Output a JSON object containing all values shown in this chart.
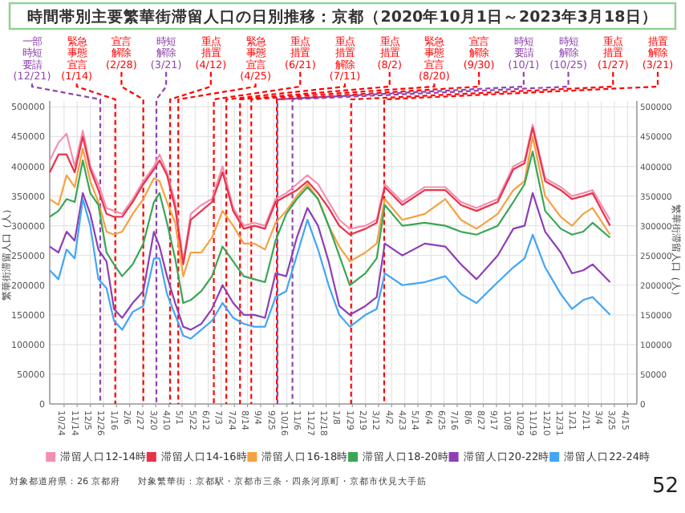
{
  "chart_data": {
    "type": "line",
    "title": "時間帯別主要繁華街滞留人口の日別推移：京都（2020年10月1日～2023年3月18日）",
    "ylabel": "繁華街滞留人口（人）",
    "y2label": "繁華街滞留人口（人）",
    "x": [
      "2020-10-01",
      "2020-10-15",
      "2020-10-28",
      "2020-11-10",
      "2020-11-23",
      "2020-12-05",
      "2020-12-18",
      "2020-12-31",
      "2021-01-12",
      "2021-01-25",
      "2021-02-11",
      "2021-02-28",
      "2021-03-17",
      "2021-03-26",
      "2021-04-07",
      "2021-04-20",
      "2021-05-03",
      "2021-05-15",
      "2021-06-01",
      "2021-06-18",
      "2021-07-05",
      "2021-07-22",
      "2021-08-08",
      "2021-08-25",
      "2021-09-11",
      "2021-09-28",
      "2021-10-15",
      "2021-11-01",
      "2021-11-18",
      "2021-12-05",
      "2021-12-22",
      "2022-01-08",
      "2022-01-25",
      "2022-02-19",
      "2022-03-09",
      "2022-03-22",
      "2022-04-19",
      "2022-05-25",
      "2022-06-27",
      "2022-07-22",
      "2022-08-16",
      "2022-09-19",
      "2022-10-14",
      "2022-11-01",
      "2022-11-14",
      "2022-12-04",
      "2022-12-29",
      "2023-01-16",
      "2023-02-03",
      "2023-02-18",
      "2023-03-18"
    ],
    "series": [
      {
        "name": "滞留人口12-14時",
        "color": "#f48fb1",
        "values": [
          410000,
          440000,
          455000,
          400000,
          460000,
          400000,
          370000,
          330000,
          325000,
          320000,
          345000,
          375000,
          400000,
          420000,
          390000,
          340000,
          240000,
          320000,
          335000,
          345000,
          400000,
          330000,
          300000,
          305000,
          300000,
          345000,
          355000,
          370000,
          385000,
          370000,
          340000,
          310000,
          295000,
          300000,
          310000,
          370000,
          340000,
          365000,
          365000,
          340000,
          330000,
          345000,
          400000,
          410000,
          470000,
          380000,
          365000,
          350000,
          355000,
          360000,
          310000
        ]
      },
      {
        "name": "滞留人口14-16時",
        "color": "#e8334a",
        "values": [
          390000,
          420000,
          420000,
          390000,
          450000,
          395000,
          360000,
          320000,
          315000,
          315000,
          340000,
          370000,
          395000,
          410000,
          385000,
          330000,
          235000,
          310000,
          325000,
          340000,
          390000,
          325000,
          295000,
          300000,
          295000,
          340000,
          350000,
          360000,
          375000,
          355000,
          330000,
          300000,
          285000,
          295000,
          305000,
          365000,
          335000,
          360000,
          360000,
          335000,
          325000,
          340000,
          395000,
          405000,
          465000,
          375000,
          360000,
          345000,
          350000,
          355000,
          300000
        ]
      },
      {
        "name": "滞留人口16-18時",
        "color": "#f5a142",
        "values": [
          345000,
          335000,
          385000,
          365000,
          430000,
          375000,
          340000,
          290000,
          285000,
          290000,
          320000,
          345000,
          380000,
          375000,
          340000,
          305000,
          215000,
          255000,
          255000,
          280000,
          325000,
          300000,
          270000,
          270000,
          260000,
          305000,
          325000,
          350000,
          370000,
          345000,
          300000,
          265000,
          240000,
          255000,
          270000,
          345000,
          310000,
          320000,
          345000,
          310000,
          295000,
          320000,
          360000,
          375000,
          450000,
          350000,
          315000,
          300000,
          320000,
          330000,
          285000
        ]
      },
      {
        "name": "滞留人口18-20時",
        "color": "#3aa655",
        "values": [
          315000,
          325000,
          345000,
          340000,
          410000,
          355000,
          335000,
          255000,
          235000,
          215000,
          235000,
          270000,
          340000,
          355000,
          305000,
          245000,
          170000,
          175000,
          190000,
          215000,
          265000,
          240000,
          215000,
          210000,
          205000,
          275000,
          320000,
          345000,
          365000,
          345000,
          300000,
          250000,
          200000,
          220000,
          245000,
          335000,
          300000,
          305000,
          300000,
          290000,
          285000,
          300000,
          340000,
          370000,
          425000,
          325000,
          295000,
          285000,
          290000,
          305000,
          280000
        ]
      },
      {
        "name": "滞留人口20-22時",
        "color": "#8e3fb5",
        "values": [
          265000,
          255000,
          290000,
          275000,
          355000,
          320000,
          260000,
          240000,
          160000,
          145000,
          170000,
          190000,
          290000,
          265000,
          215000,
          170000,
          130000,
          125000,
          135000,
          160000,
          200000,
          170000,
          150000,
          150000,
          145000,
          220000,
          215000,
          280000,
          330000,
          300000,
          240000,
          165000,
          150000,
          165000,
          180000,
          270000,
          250000,
          270000,
          265000,
          235000,
          210000,
          250000,
          295000,
          300000,
          355000,
          290000,
          255000,
          220000,
          225000,
          235000,
          205000
        ]
      },
      {
        "name": "滞留人口22-24時",
        "color": "#42a5f5",
        "values": [
          225000,
          210000,
          260000,
          245000,
          345000,
          300000,
          210000,
          195000,
          140000,
          125000,
          155000,
          165000,
          245000,
          245000,
          185000,
          150000,
          115000,
          110000,
          125000,
          140000,
          170000,
          145000,
          135000,
          130000,
          130000,
          180000,
          190000,
          250000,
          310000,
          260000,
          200000,
          150000,
          130000,
          150000,
          160000,
          220000,
          200000,
          205000,
          215000,
          185000,
          170000,
          205000,
          230000,
          245000,
          285000,
          230000,
          185000,
          160000,
          175000,
          180000,
          150000
        ]
      }
    ],
    "xlim": [
      "2020-10-01",
      "2023-04-30"
    ],
    "xticks": [
      {
        "value": "2020-10-24",
        "label": "10/24"
      },
      {
        "value": "2020-11-14",
        "label": "11/14"
      },
      {
        "value": "2020-12-05",
        "label": "12/5"
      },
      {
        "value": "2020-12-26",
        "label": "12/26"
      },
      {
        "value": "2021-01-16",
        "label": "1/16"
      },
      {
        "value": "2021-02-06",
        "label": "2/6"
      },
      {
        "value": "2021-02-27",
        "label": "2/27"
      },
      {
        "value": "2021-03-20",
        "label": "3/20"
      },
      {
        "value": "2021-04-10",
        "label": "4/10"
      },
      {
        "value": "2021-05-01",
        "label": "5/1"
      },
      {
        "value": "2021-05-22",
        "label": "5/22"
      },
      {
        "value": "2021-06-12",
        "label": "6/12"
      },
      {
        "value": "2021-07-03",
        "label": "7/3"
      },
      {
        "value": "2021-07-24",
        "label": "7/24"
      },
      {
        "value": "2021-08-14",
        "label": "8/14"
      },
      {
        "value": "2021-09-04",
        "label": "9/4"
      },
      {
        "value": "2021-09-25",
        "label": "9/25"
      },
      {
        "value": "2021-10-16",
        "label": "10/16"
      },
      {
        "value": "2021-11-06",
        "label": "11/6"
      },
      {
        "value": "2021-11-27",
        "label": "11/27"
      },
      {
        "value": "2021-12-18",
        "label": "12/18"
      },
      {
        "value": "2022-01-08",
        "label": "1/8"
      },
      {
        "value": "2022-01-29",
        "label": "1/29"
      },
      {
        "value": "2022-02-19",
        "label": "2/19"
      },
      {
        "value": "2022-03-12",
        "label": "3/12"
      },
      {
        "value": "2022-04-02",
        "label": "4/2"
      },
      {
        "value": "2022-04-23",
        "label": "4/23"
      },
      {
        "value": "2022-05-14",
        "label": "5/14"
      },
      {
        "value": "2022-06-04",
        "label": "6/4"
      },
      {
        "value": "2022-06-25",
        "label": "6/25"
      },
      {
        "value": "2022-07-16",
        "label": "7/16"
      },
      {
        "value": "2022-08-06",
        "label": "8/6"
      },
      {
        "value": "2022-08-27",
        "label": "8/27"
      },
      {
        "value": "2022-09-17",
        "label": "9/17"
      },
      {
        "value": "2022-10-08",
        "label": "10/8"
      },
      {
        "value": "2022-10-29",
        "label": "10/29"
      },
      {
        "value": "2022-11-19",
        "label": "11/19"
      },
      {
        "value": "2022-12-10",
        "label": "12/10"
      },
      {
        "value": "2022-12-31",
        "label": "12/31"
      },
      {
        "value": "2023-01-21",
        "label": "1/21"
      },
      {
        "value": "2023-02-11",
        "label": "2/11"
      },
      {
        "value": "2023-03-04",
        "label": "3/4"
      },
      {
        "value": "2023-03-25",
        "label": "3/25"
      },
      {
        "value": "2023-04-15",
        "label": "4/15"
      }
    ],
    "ylim": [
      0,
      510000
    ],
    "yticks": [
      0,
      50000,
      100000,
      150000,
      200000,
      250000,
      300000,
      350000,
      400000,
      450000,
      500000
    ],
    "y2lim": [
      0,
      510000
    ],
    "y2ticks": [
      0,
      50000,
      100000,
      150000,
      200000,
      250000,
      300000,
      350000,
      400000,
      450000,
      500000
    ],
    "ref_lines": [
      {
        "axis": "x",
        "value": "2020-12-21",
        "label": "一部時短要請(12/21)",
        "color": "#8e44ad",
        "line_style": "dashed"
      },
      {
        "axis": "x",
        "value": "2021-01-14",
        "label": "緊急事態宣言(1/14)",
        "color": "#ff0000",
        "line_style": "dashed"
      },
      {
        "axis": "x",
        "value": "2021-02-28",
        "label": "宣言解除(2/28)",
        "color": "#ff0000",
        "line_style": "dashed"
      },
      {
        "axis": "x",
        "value": "2021-03-21",
        "label": "時短解除(3/21)",
        "color": "#8e44ad",
        "line_style": "dashed"
      },
      {
        "axis": "x",
        "value": "2021-04-12",
        "label": "重点措置(4/12)",
        "color": "#ff0000",
        "line_style": "dashed"
      },
      {
        "axis": "x",
        "value": "2021-04-25",
        "label": "緊急事態宣言(4/25)",
        "color": "#ff0000",
        "line_style": "dashed"
      },
      {
        "axis": "x",
        "value": "2021-06-21",
        "label": "重点措置(6/21)",
        "color": "#ff0000",
        "line_style": "dashed"
      },
      {
        "axis": "x",
        "value": "2021-07-11",
        "label": "重点措置解除(7/11)",
        "color": "#ff0000",
        "line_style": "dashed"
      },
      {
        "axis": "x",
        "value": "2021-08-02",
        "label": "重点措置(8/2)",
        "color": "#ff0000",
        "line_style": "dashed"
      },
      {
        "axis": "x",
        "value": "2021-08-20",
        "label": "緊急事態宣言(8/20)",
        "color": "#ff0000",
        "line_style": "dashed"
      },
      {
        "axis": "x",
        "value": "2021-09-30",
        "label": "宣言解除(9/30)",
        "color": "#ff0000",
        "line_style": "dashed"
      },
      {
        "axis": "x",
        "value": "2021-10-01",
        "label": "時短要請(10/1)",
        "color": "#8e44ad",
        "line_style": "dashed"
      },
      {
        "axis": "x",
        "value": "2021-10-25",
        "label": "時短解除(10/25)",
        "color": "#8e44ad",
        "line_style": "dashed"
      },
      {
        "axis": "x",
        "value": "2022-01-27",
        "label": "重点措置(1/27)",
        "color": "#ff0000",
        "line_style": "dashed"
      },
      {
        "axis": "x",
        "value": "2022-03-21",
        "label": "措置解除(3/21)",
        "color": "#ff0000",
        "line_style": "dashed"
      }
    ],
    "annotations": [
      "対象都道府県：26 京都府",
      "対象繁華街：京都駅・京都市三条・四条河原町・京都市伏見大手筋",
      "52"
    ],
    "grid": true,
    "legend": "bottom",
    "line_style": "solid",
    "marker": "none"
  }
}
